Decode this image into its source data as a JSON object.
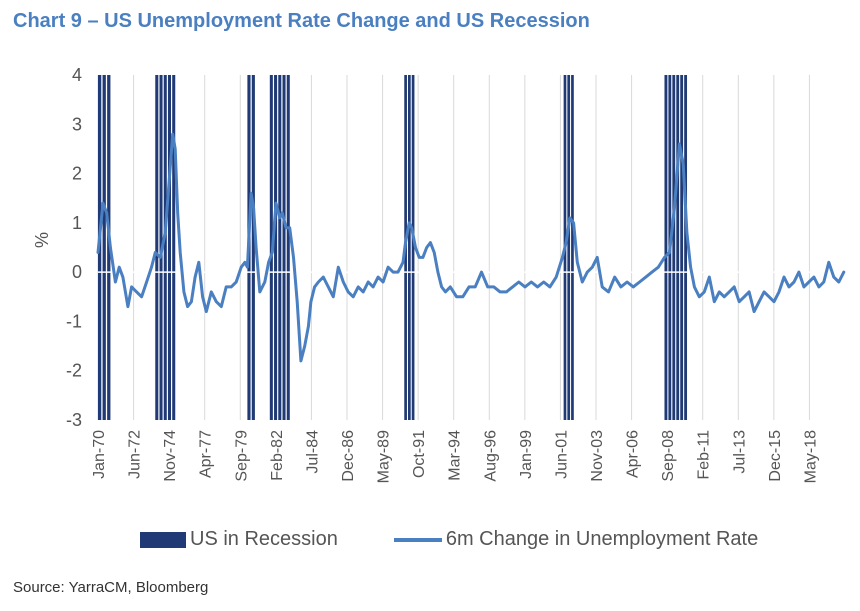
{
  "title": "Chart 9 – US Unemployment Rate Change and US Recession",
  "source": "Source: YarraCM, Bloomberg",
  "colors": {
    "recession": "#1f3a74",
    "line": "#4a7fc1",
    "title": "#4a7fc1"
  },
  "chart_data": {
    "type": "line",
    "title": "Chart 9 – US Unemployment Rate Change and US Recession",
    "xlabel": "",
    "ylabel": "%",
    "ylim": [
      -3,
      4
    ],
    "yticks": [
      "4",
      "3",
      "2",
      "1",
      "0",
      "-1",
      "-2",
      "-3"
    ],
    "x_tick_labels": [
      "Jan-70",
      "Jun-72",
      "Nov-74",
      "Apr-77",
      "Sep-79",
      "Feb-82",
      "Jul-84",
      "Dec-86",
      "May-89",
      "Oct-91",
      "Mar-94",
      "Aug-96",
      "Jan-99",
      "Jun-01",
      "Nov-03",
      "Apr-06",
      "Sep-08",
      "Feb-11",
      "Jul-13",
      "Dec-15",
      "May-18"
    ],
    "xlim": [
      "1970-01",
      "2019-12"
    ],
    "grid": "vertical",
    "legend": "bottom",
    "series": [
      {
        "name": "US in Recession",
        "kind": "shaded-bars",
        "periods": [
          [
            "1970-01",
            "1970-11"
          ],
          [
            "1973-11",
            "1975-03"
          ],
          [
            "1980-01",
            "1980-07"
          ],
          [
            "1981-07",
            "1982-11"
          ],
          [
            "1990-07",
            "1991-03"
          ],
          [
            "2001-03",
            "2001-11"
          ],
          [
            "2007-12",
            "2009-06"
          ]
        ]
      },
      {
        "name": "6m Change in Unemployment Rate",
        "kind": "line",
        "x": [
          "1970-01",
          "1970-05",
          "1970-08",
          "1970-11",
          "1971-03",
          "1971-06",
          "1971-09",
          "1972-01",
          "1972-04",
          "1972-08",
          "1972-12",
          "1973-04",
          "1973-08",
          "1973-11",
          "1974-03",
          "1974-07",
          "1974-10",
          "1975-01",
          "1975-03",
          "1975-05",
          "1975-07",
          "1975-10",
          "1976-01",
          "1976-04",
          "1976-07",
          "1976-10",
          "1977-01",
          "1977-04",
          "1977-08",
          "1977-12",
          "1978-04",
          "1978-08",
          "1978-12",
          "1979-04",
          "1979-08",
          "1979-11",
          "1980-01",
          "1980-04",
          "1980-06",
          "1980-08",
          "1980-11",
          "1981-03",
          "1981-06",
          "1981-09",
          "1981-12",
          "1982-03",
          "1982-05",
          "1982-08",
          "1982-11",
          "1983-02",
          "1983-05",
          "1983-08",
          "1983-11",
          "1984-02",
          "1984-04",
          "1984-07",
          "1984-10",
          "1985-02",
          "1985-06",
          "1985-10",
          "1986-02",
          "1986-06",
          "1986-10",
          "1987-02",
          "1987-06",
          "1987-10",
          "1988-02",
          "1988-06",
          "1988-10",
          "1989-02",
          "1989-06",
          "1989-10",
          "1990-02",
          "1990-06",
          "1990-08",
          "1990-11",
          "1991-01",
          "1991-04",
          "1991-07",
          "1991-10",
          "1992-01",
          "1992-04",
          "1992-07",
          "1992-10",
          "1993-01",
          "1993-04",
          "1993-08",
          "1994-01",
          "1994-06",
          "1994-11",
          "1995-04",
          "1995-09",
          "1996-02",
          "1996-07",
          "1996-12",
          "1997-05",
          "1997-10",
          "1998-03",
          "1998-08",
          "1999-01",
          "1999-06",
          "1999-11",
          "2000-04",
          "2000-09",
          "2001-02",
          "2001-05",
          "2001-08",
          "2001-11",
          "2002-02",
          "2002-06",
          "2002-10",
          "2003-02",
          "2003-06",
          "2003-10",
          "2004-03",
          "2004-08",
          "2005-01",
          "2005-06",
          "2005-11",
          "2006-04",
          "2006-09",
          "2007-02",
          "2007-07",
          "2007-12",
          "2008-04",
          "2008-08",
          "2008-12",
          "2009-03",
          "2009-06",
          "2009-09",
          "2009-12",
          "2010-04",
          "2010-08",
          "2010-12",
          "2011-04",
          "2011-08",
          "2011-12",
          "2012-04",
          "2012-08",
          "2012-12",
          "2013-04",
          "2013-08",
          "2013-12",
          "2014-04",
          "2014-08",
          "2014-12",
          "2015-04",
          "2015-08",
          "2015-12",
          "2016-04",
          "2016-08",
          "2016-12",
          "2017-04",
          "2017-08",
          "2017-12",
          "2018-04",
          "2018-08",
          "2018-12",
          "2019-04",
          "2019-08",
          "2019-12"
        ],
        "values": [
          0.4,
          1.4,
          1.2,
          0.5,
          -0.2,
          0.1,
          -0.1,
          -0.7,
          -0.3,
          -0.4,
          -0.5,
          -0.2,
          0.1,
          0.4,
          0.3,
          0.8,
          1.8,
          2.8,
          2.5,
          1.2,
          0.4,
          -0.4,
          -0.7,
          -0.6,
          -0.1,
          0.2,
          -0.5,
          -0.8,
          -0.4,
          -0.6,
          -0.7,
          -0.3,
          -0.3,
          -0.2,
          0.1,
          0.2,
          0.1,
          1.6,
          1.3,
          0.5,
          -0.4,
          -0.2,
          0.2,
          0.4,
          1.4,
          1.1,
          1.2,
          0.9,
          0.9,
          0.3,
          -0.6,
          -1.8,
          -1.5,
          -1.1,
          -0.6,
          -0.3,
          -0.2,
          -0.1,
          -0.3,
          -0.5,
          0.1,
          -0.2,
          -0.4,
          -0.5,
          -0.3,
          -0.4,
          -0.2,
          -0.3,
          -0.1,
          -0.2,
          0.1,
          0.0,
          0.0,
          0.2,
          0.6,
          1.0,
          0.9,
          0.5,
          0.3,
          0.3,
          0.5,
          0.6,
          0.4,
          0.0,
          -0.3,
          -0.4,
          -0.3,
          -0.5,
          -0.5,
          -0.3,
          -0.3,
          0.0,
          -0.3,
          -0.3,
          -0.4,
          -0.4,
          -0.3,
          -0.2,
          -0.3,
          -0.2,
          -0.3,
          -0.2,
          -0.3,
          -0.1,
          0.3,
          0.6,
          1.1,
          1.0,
          0.2,
          -0.2,
          0.0,
          0.1,
          0.3,
          -0.3,
          -0.4,
          -0.1,
          -0.3,
          -0.2,
          -0.3,
          -0.2,
          -0.1,
          0.0,
          0.1,
          0.3,
          0.4,
          1.3,
          2.6,
          2.2,
          0.8,
          0.1,
          -0.3,
          -0.5,
          -0.4,
          -0.1,
          -0.6,
          -0.4,
          -0.5,
          -0.4,
          -0.3,
          -0.6,
          -0.5,
          -0.4,
          -0.8,
          -0.6,
          -0.4,
          -0.5,
          -0.6,
          -0.4,
          -0.1,
          -0.3,
          -0.2,
          0.0,
          -0.3,
          -0.2,
          -0.1,
          -0.3,
          -0.2,
          0.2,
          -0.1,
          -0.2,
          0.0
        ]
      }
    ]
  }
}
